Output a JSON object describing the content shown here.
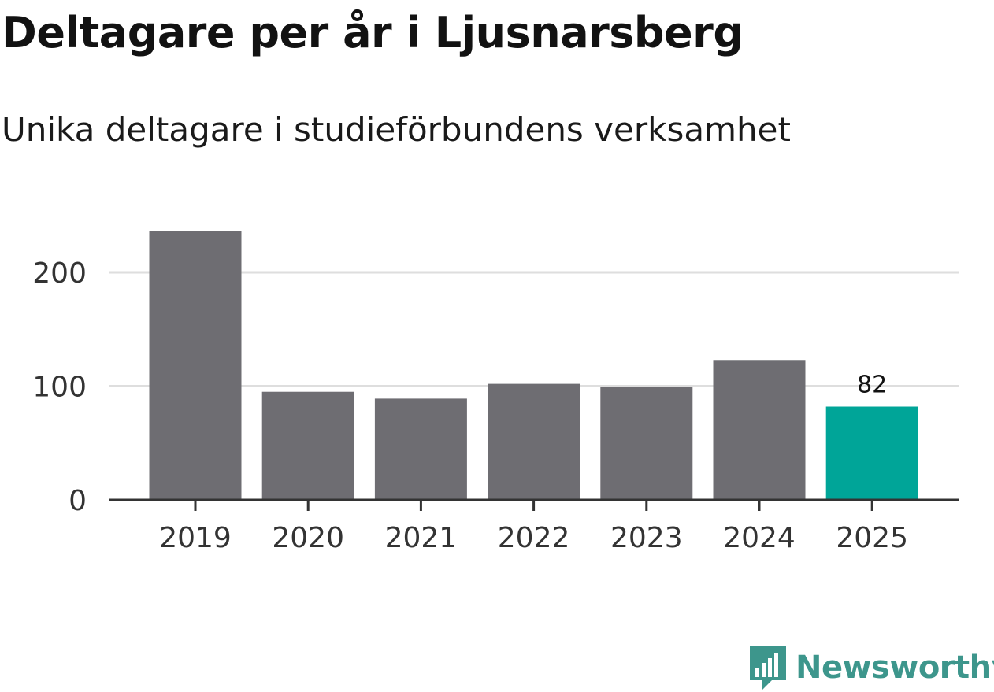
{
  "chart_data": {
    "type": "bar",
    "title": "Deltagare per år i Ljusnarsberg",
    "subtitle": "Unika deltagare i studieförbundens verksamhet",
    "categories": [
      "2019",
      "2020",
      "2021",
      "2022",
      "2023",
      "2024",
      "2025"
    ],
    "values": [
      236,
      95,
      89,
      102,
      99,
      123,
      82
    ],
    "highlight_index": 6,
    "data_labels": [
      {
        "index": 6,
        "text": "82"
      }
    ],
    "yticks": [
      0,
      100,
      200
    ],
    "ylim": [
      0,
      250
    ],
    "xlabel": "",
    "ylabel": "",
    "grid": true,
    "colors": {
      "bar": "#6e6d72",
      "highlight": "#00a598",
      "grid": "#dedede",
      "axis": "#333333",
      "tick_text": "#333333"
    }
  },
  "branding": {
    "logo_name": "Newsworthy",
    "logo_color": "#3d968c",
    "icon": "newsworthy-logo-icon"
  }
}
